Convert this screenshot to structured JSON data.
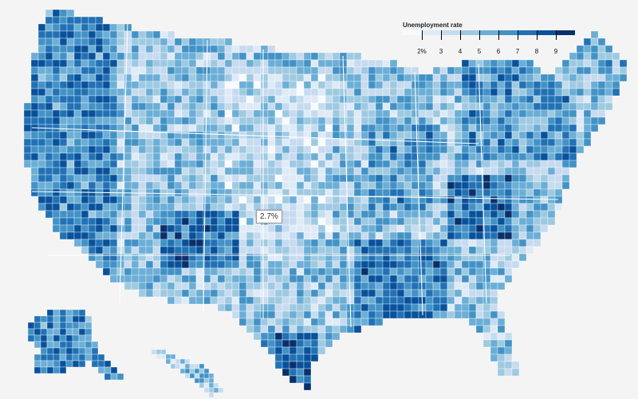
{
  "legend": {
    "title": "Unemployment rate",
    "ticks": [
      "2%",
      "3",
      "4",
      "5",
      "6",
      "7",
      "8",
      "9"
    ],
    "colors": [
      "#f7fbff",
      "#deebf7",
      "#c6dbef",
      "#9ecae1",
      "#6baed6",
      "#4292c6",
      "#2171b5",
      "#08519c",
      "#08306b"
    ]
  },
  "tooltip": {
    "value": "2.7%"
  }
}
